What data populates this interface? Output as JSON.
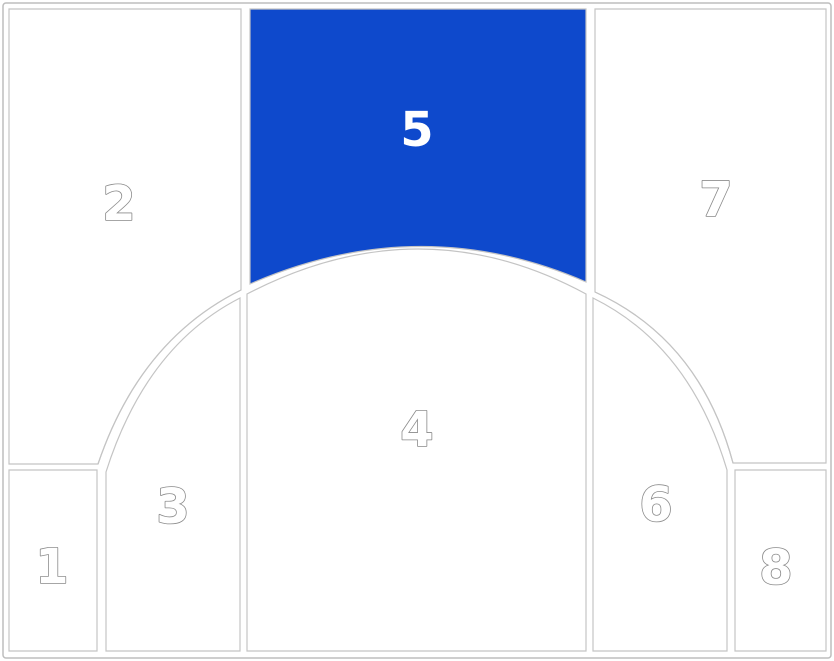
{
  "colors": {
    "zone_fill": "#ffffff",
    "zone_border": "#c4c4c4",
    "selected_fill": "#0e49cc",
    "label_normal": "#ffffff",
    "label_outline": "#8a8a8a"
  },
  "zones": [
    {
      "id": "1",
      "label": "1",
      "selected": false
    },
    {
      "id": "2",
      "label": "2",
      "selected": false
    },
    {
      "id": "3",
      "label": "3",
      "selected": false
    },
    {
      "id": "4",
      "label": "4",
      "selected": false
    },
    {
      "id": "5",
      "label": "5",
      "selected": true
    },
    {
      "id": "6",
      "label": "6",
      "selected": false
    },
    {
      "id": "7",
      "label": "7",
      "selected": false
    },
    {
      "id": "8",
      "label": "8",
      "selected": false
    }
  ]
}
